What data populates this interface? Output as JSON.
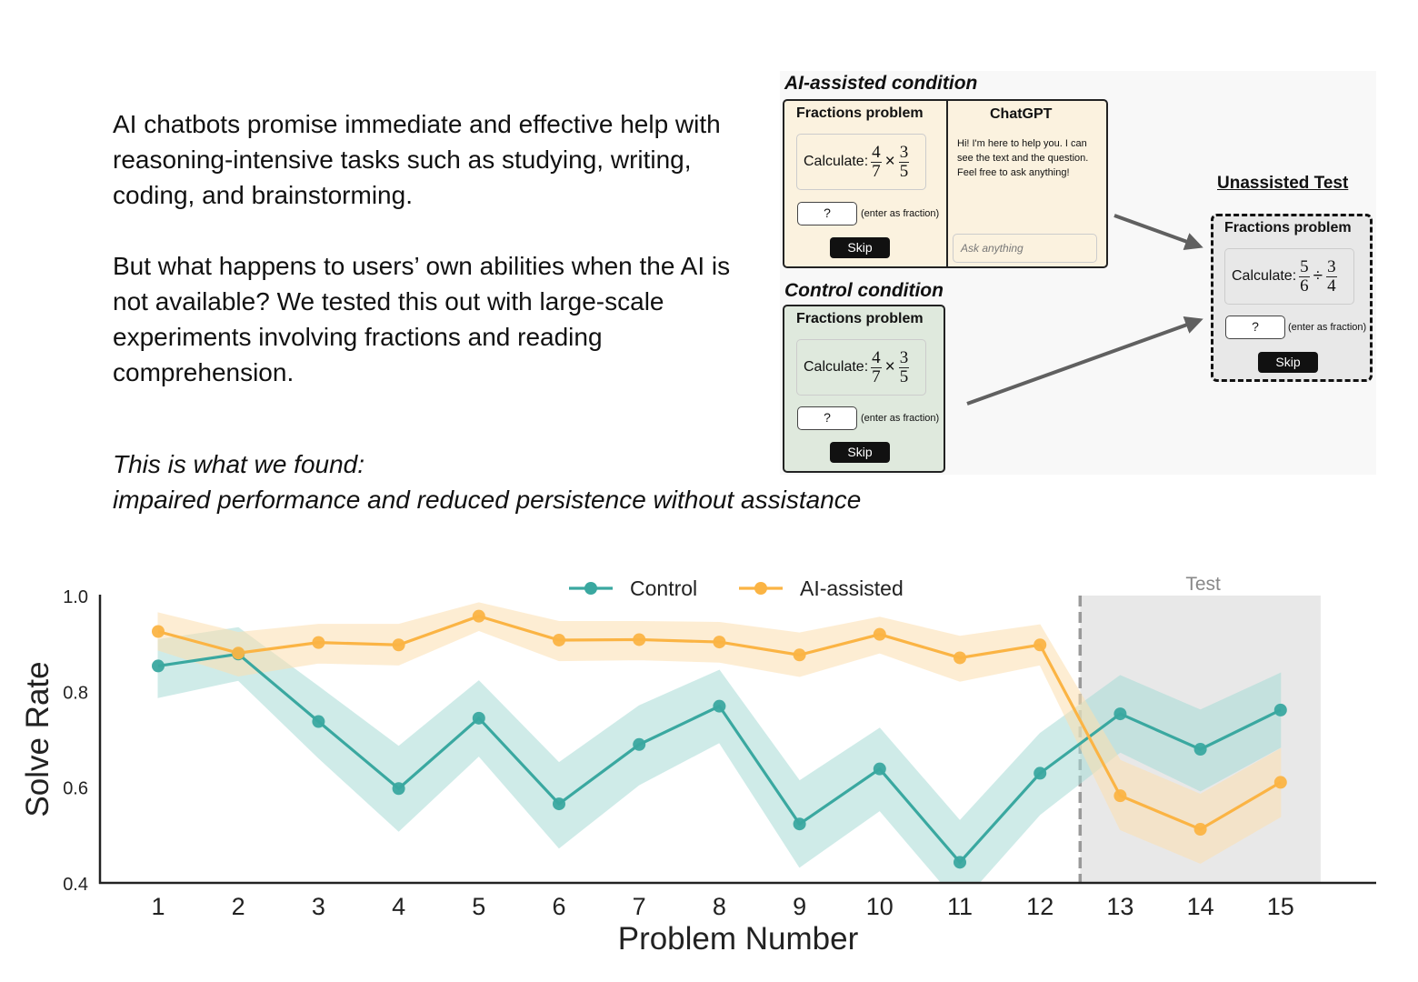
{
  "intro": {
    "paragraph1": "AI chatbots promise immediate and effective help with reasoning-intensive tasks such as studying, writing, coding, and brainstorming.",
    "paragraph2": "But what happens to users’ own abilities when the AI is not available? We tested this out with large-scale experiments involving fractions and reading comprehension.",
    "finding_line1": "This is what we found:",
    "finding_line2": "impaired performance and reduced persistence without assistance"
  },
  "figure": {
    "ai_condition_title": "AI-assisted condition",
    "control_condition_title": "Control condition",
    "test_title": "Unassisted Test",
    "problem_heading": "Fractions problem",
    "calculate_label": "Calculate:",
    "practice_fraction": {
      "a_num": "4",
      "a_den": "7",
      "op": "×",
      "b_num": "3",
      "b_den": "5"
    },
    "test_fraction": {
      "a_num": "5",
      "a_den": "6",
      "op": "÷",
      "b_num": "3",
      "b_den": "4"
    },
    "answer_placeholder": "?",
    "answer_hint": "(enter as fraction)",
    "skip_label": "Skip",
    "chat_title": "ChatGPT",
    "chat_message": "Hi! I'm here to help you. I can see the text and the question. Feel free to ask anything!",
    "chat_input_placeholder": "Ask anything",
    "colors": {
      "ai_panel": "#fbf2df",
      "control_panel": "#dfe9dd",
      "test_panel": "#e8e8e8",
      "arrow": "#606060"
    }
  },
  "chart_data": {
    "type": "line",
    "xlabel": "Problem Number",
    "ylabel": "Solve Rate",
    "x": [
      1,
      2,
      3,
      4,
      5,
      6,
      7,
      8,
      9,
      10,
      11,
      12,
      13,
      14,
      15
    ],
    "xticks": [
      "1",
      "2",
      "3",
      "4",
      "5",
      "6",
      "7",
      "8",
      "9",
      "10",
      "11",
      "12",
      "13",
      "14",
      "15"
    ],
    "ylim": [
      0.4,
      1.0
    ],
    "yticks": [
      "1.0",
      "0.8",
      "0.6",
      "0.4"
    ],
    "yticks_values": [
      1.0,
      0.8,
      0.6,
      0.4
    ],
    "legend_position": "top-center",
    "test_region": {
      "label": "Test",
      "start": 12.5,
      "end": 15.5,
      "color": "#e8e8e8",
      "divider_color": "#999999"
    },
    "series": [
      {
        "name": "Control",
        "color": "#3aa8a0",
        "band_color": "#a8dcd7",
        "values": [
          0.853,
          0.878,
          0.737,
          0.597,
          0.744,
          0.565,
          0.689,
          0.769,
          0.523,
          0.638,
          0.443,
          0.629,
          0.753,
          0.679,
          0.761
        ],
        "lower": [
          0.787,
          0.823,
          0.661,
          0.508,
          0.665,
          0.473,
          0.605,
          0.693,
          0.433,
          0.551,
          0.355,
          0.543,
          0.673,
          0.592,
          0.683
        ],
        "upper": [
          0.908,
          0.933,
          0.81,
          0.685,
          0.822,
          0.651,
          0.77,
          0.844,
          0.613,
          0.723,
          0.53,
          0.712,
          0.833,
          0.761,
          0.838
        ]
      },
      {
        "name": "AI-assisted",
        "color": "#fbb444",
        "band_color": "#fde0b0",
        "values": [
          0.925,
          0.88,
          0.902,
          0.897,
          0.957,
          0.907,
          0.908,
          0.903,
          0.876,
          0.919,
          0.87,
          0.897,
          0.582,
          0.512,
          0.61
        ],
        "lower": [
          0.886,
          0.832,
          0.859,
          0.855,
          0.927,
          0.864,
          0.866,
          0.861,
          0.831,
          0.88,
          0.821,
          0.855,
          0.511,
          0.441,
          0.538
        ],
        "upper": [
          0.964,
          0.923,
          0.94,
          0.94,
          0.985,
          0.946,
          0.946,
          0.944,
          0.922,
          0.955,
          0.915,
          0.939,
          0.656,
          0.585,
          0.68
        ]
      }
    ]
  }
}
